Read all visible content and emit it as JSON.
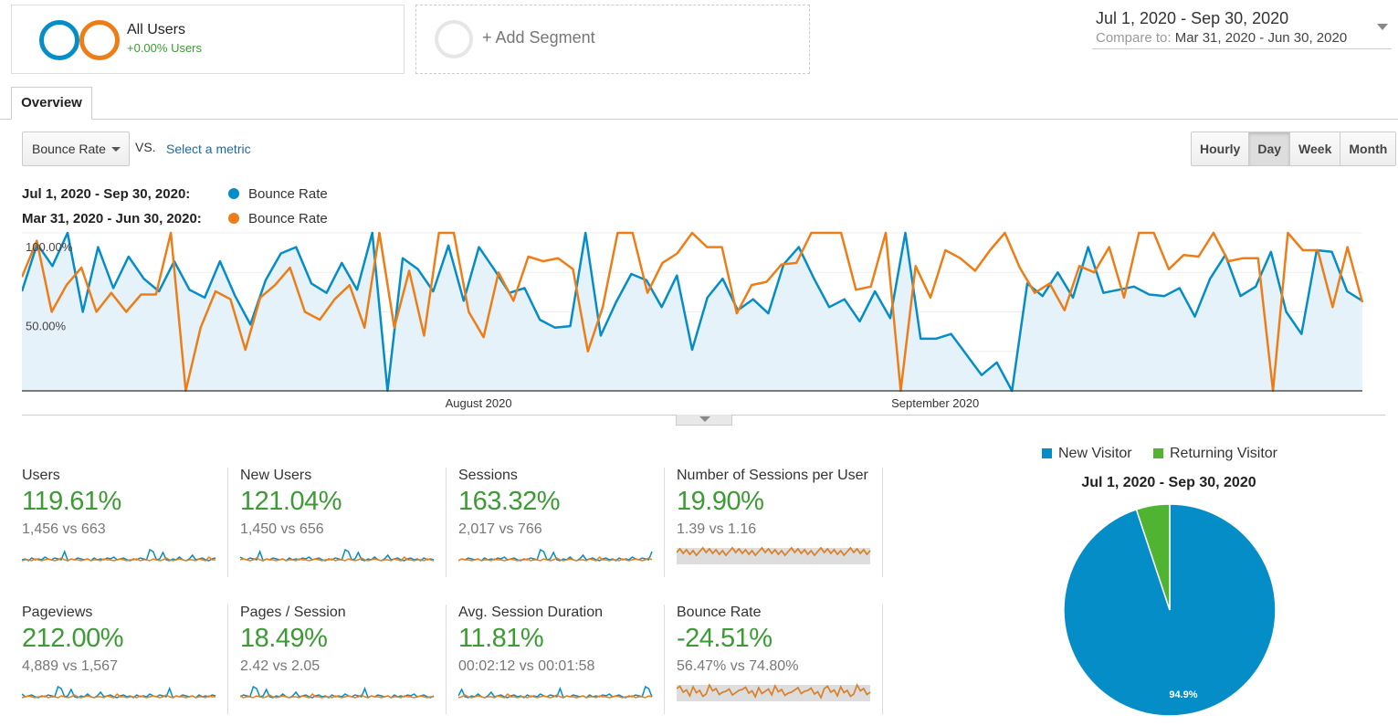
{
  "segments": {
    "all_users": {
      "title": "All Users",
      "subtitle": "+0.00% Users"
    },
    "add_segment": "+ Add Segment"
  },
  "date_range": {
    "main": "Jul 1, 2020 - Sep 30, 2020",
    "compare_label": "Compare to:",
    "compare_value": "Mar 31, 2020 - Jun 30, 2020"
  },
  "tabs": {
    "overview": "Overview"
  },
  "controls": {
    "metric": "Bounce Rate",
    "vs": "VS.",
    "select_metric": "Select a metric",
    "granularity": [
      "Hourly",
      "Day",
      "Week",
      "Month"
    ],
    "active_granularity": "Day"
  },
  "legend": [
    {
      "range": "Jul 1, 2020 - Sep 30, 2020:",
      "metric": "Bounce Rate",
      "color": "#058dc7"
    },
    {
      "range": "Mar 31, 2020 - Jun 30, 2020:",
      "metric": "Bounce Rate",
      "color": "#ed7e17"
    }
  ],
  "chart_data": {
    "type": "line",
    "y_tick_labels": [
      "100.00%",
      "50.00%"
    ],
    "x_tick_labels": [
      "August 2020",
      "September 2020"
    ],
    "ylim": [
      0,
      100
    ],
    "grid": true,
    "series": [
      {
        "name": "Bounce Rate",
        "period": "Jul 1, 2020 - Sep 30, 2020",
        "color": "#058dc7",
        "fill": true,
        "values": [
          63,
          93,
          79,
          100,
          50,
          91,
          65,
          85,
          71,
          63,
          82,
          64,
          59,
          82,
          60,
          42,
          70,
          87,
          91,
          68,
          62,
          81,
          64,
          100,
          0,
          84,
          77,
          63,
          92,
          57,
          91,
          77,
          62,
          65,
          45,
          40,
          41,
          100,
          35,
          56,
          74,
          70,
          53,
          73,
          26,
          59,
          71,
          51,
          58,
          49,
          80,
          91,
          71,
          53,
          58,
          44,
          63,
          46,
          100,
          33,
          33,
          36,
          23,
          10,
          18,
          0,
          68,
          60,
          75,
          59,
          91,
          62,
          64,
          66,
          61,
          60,
          65,
          47,
          71,
          86,
          60,
          66,
          88,
          50,
          36,
          89,
          88,
          63,
          57
        ]
      },
      {
        "name": "Bounce Rate",
        "period": "Mar 31, 2020 - Jun 30, 2020",
        "color": "#ed7e17",
        "fill": false,
        "values": [
          72,
          95,
          50,
          67,
          78,
          50,
          62,
          50,
          61,
          61,
          100,
          0,
          40,
          63,
          58,
          26,
          59,
          67,
          78,
          50,
          45,
          58,
          67,
          40,
          100,
          40,
          76,
          35,
          100,
          100,
          50,
          34,
          75,
          57,
          85,
          82,
          84,
          77,
          25,
          53,
          100,
          100,
          62,
          81,
          87,
          100,
          91,
          91,
          49,
          67,
          69,
          80,
          81,
          100,
          100,
          100,
          64,
          66,
          100,
          0,
          79,
          59,
          89,
          84,
          76,
          89,
          100,
          78,
          62,
          68,
          51,
          79,
          75,
          91,
          59,
          100,
          100,
          77,
          86,
          85,
          100,
          82,
          84,
          84,
          0,
          100,
          89,
          89,
          53,
          91,
          56
        ]
      }
    ]
  },
  "scorecards": [
    {
      "name": "Users",
      "pct": "119.61%",
      "cmp": "1,456 vs 663",
      "shaded": false
    },
    {
      "name": "New Users",
      "pct": "121.04%",
      "cmp": "1,450 vs 656",
      "shaded": false
    },
    {
      "name": "Sessions",
      "pct": "163.32%",
      "cmp": "2,017 vs 766",
      "shaded": false
    },
    {
      "name": "Number of Sessions per User",
      "pct": "19.90%",
      "cmp": "1.39 vs 1.16",
      "shaded": true
    },
    {
      "name": "Pageviews",
      "pct": "212.00%",
      "cmp": "4,889 vs 1,567",
      "shaded": false
    },
    {
      "name": "Pages / Session",
      "pct": "18.49%",
      "cmp": "2.42 vs 2.05",
      "shaded": false
    },
    {
      "name": "Avg. Session Duration",
      "pct": "11.81%",
      "cmp": "00:02:12 vs 00:01:58",
      "shaded": false
    },
    {
      "name": "Bounce Rate",
      "pct": "-24.51%",
      "cmp": "56.47% vs 74.80%",
      "shaded": true
    }
  ],
  "pie": {
    "legend": [
      {
        "label": "New Visitor",
        "color": "#058dc7"
      },
      {
        "label": "Returning Visitor",
        "color": "#50b432"
      }
    ],
    "title": "Jul 1, 2020 - Sep 30, 2020",
    "chart_data": {
      "type": "pie",
      "labels": [
        "New Visitor",
        "Returning Visitor"
      ],
      "values": [
        94.9,
        5.1
      ],
      "slice_labels": [
        "94.9%",
        ""
      ]
    }
  }
}
